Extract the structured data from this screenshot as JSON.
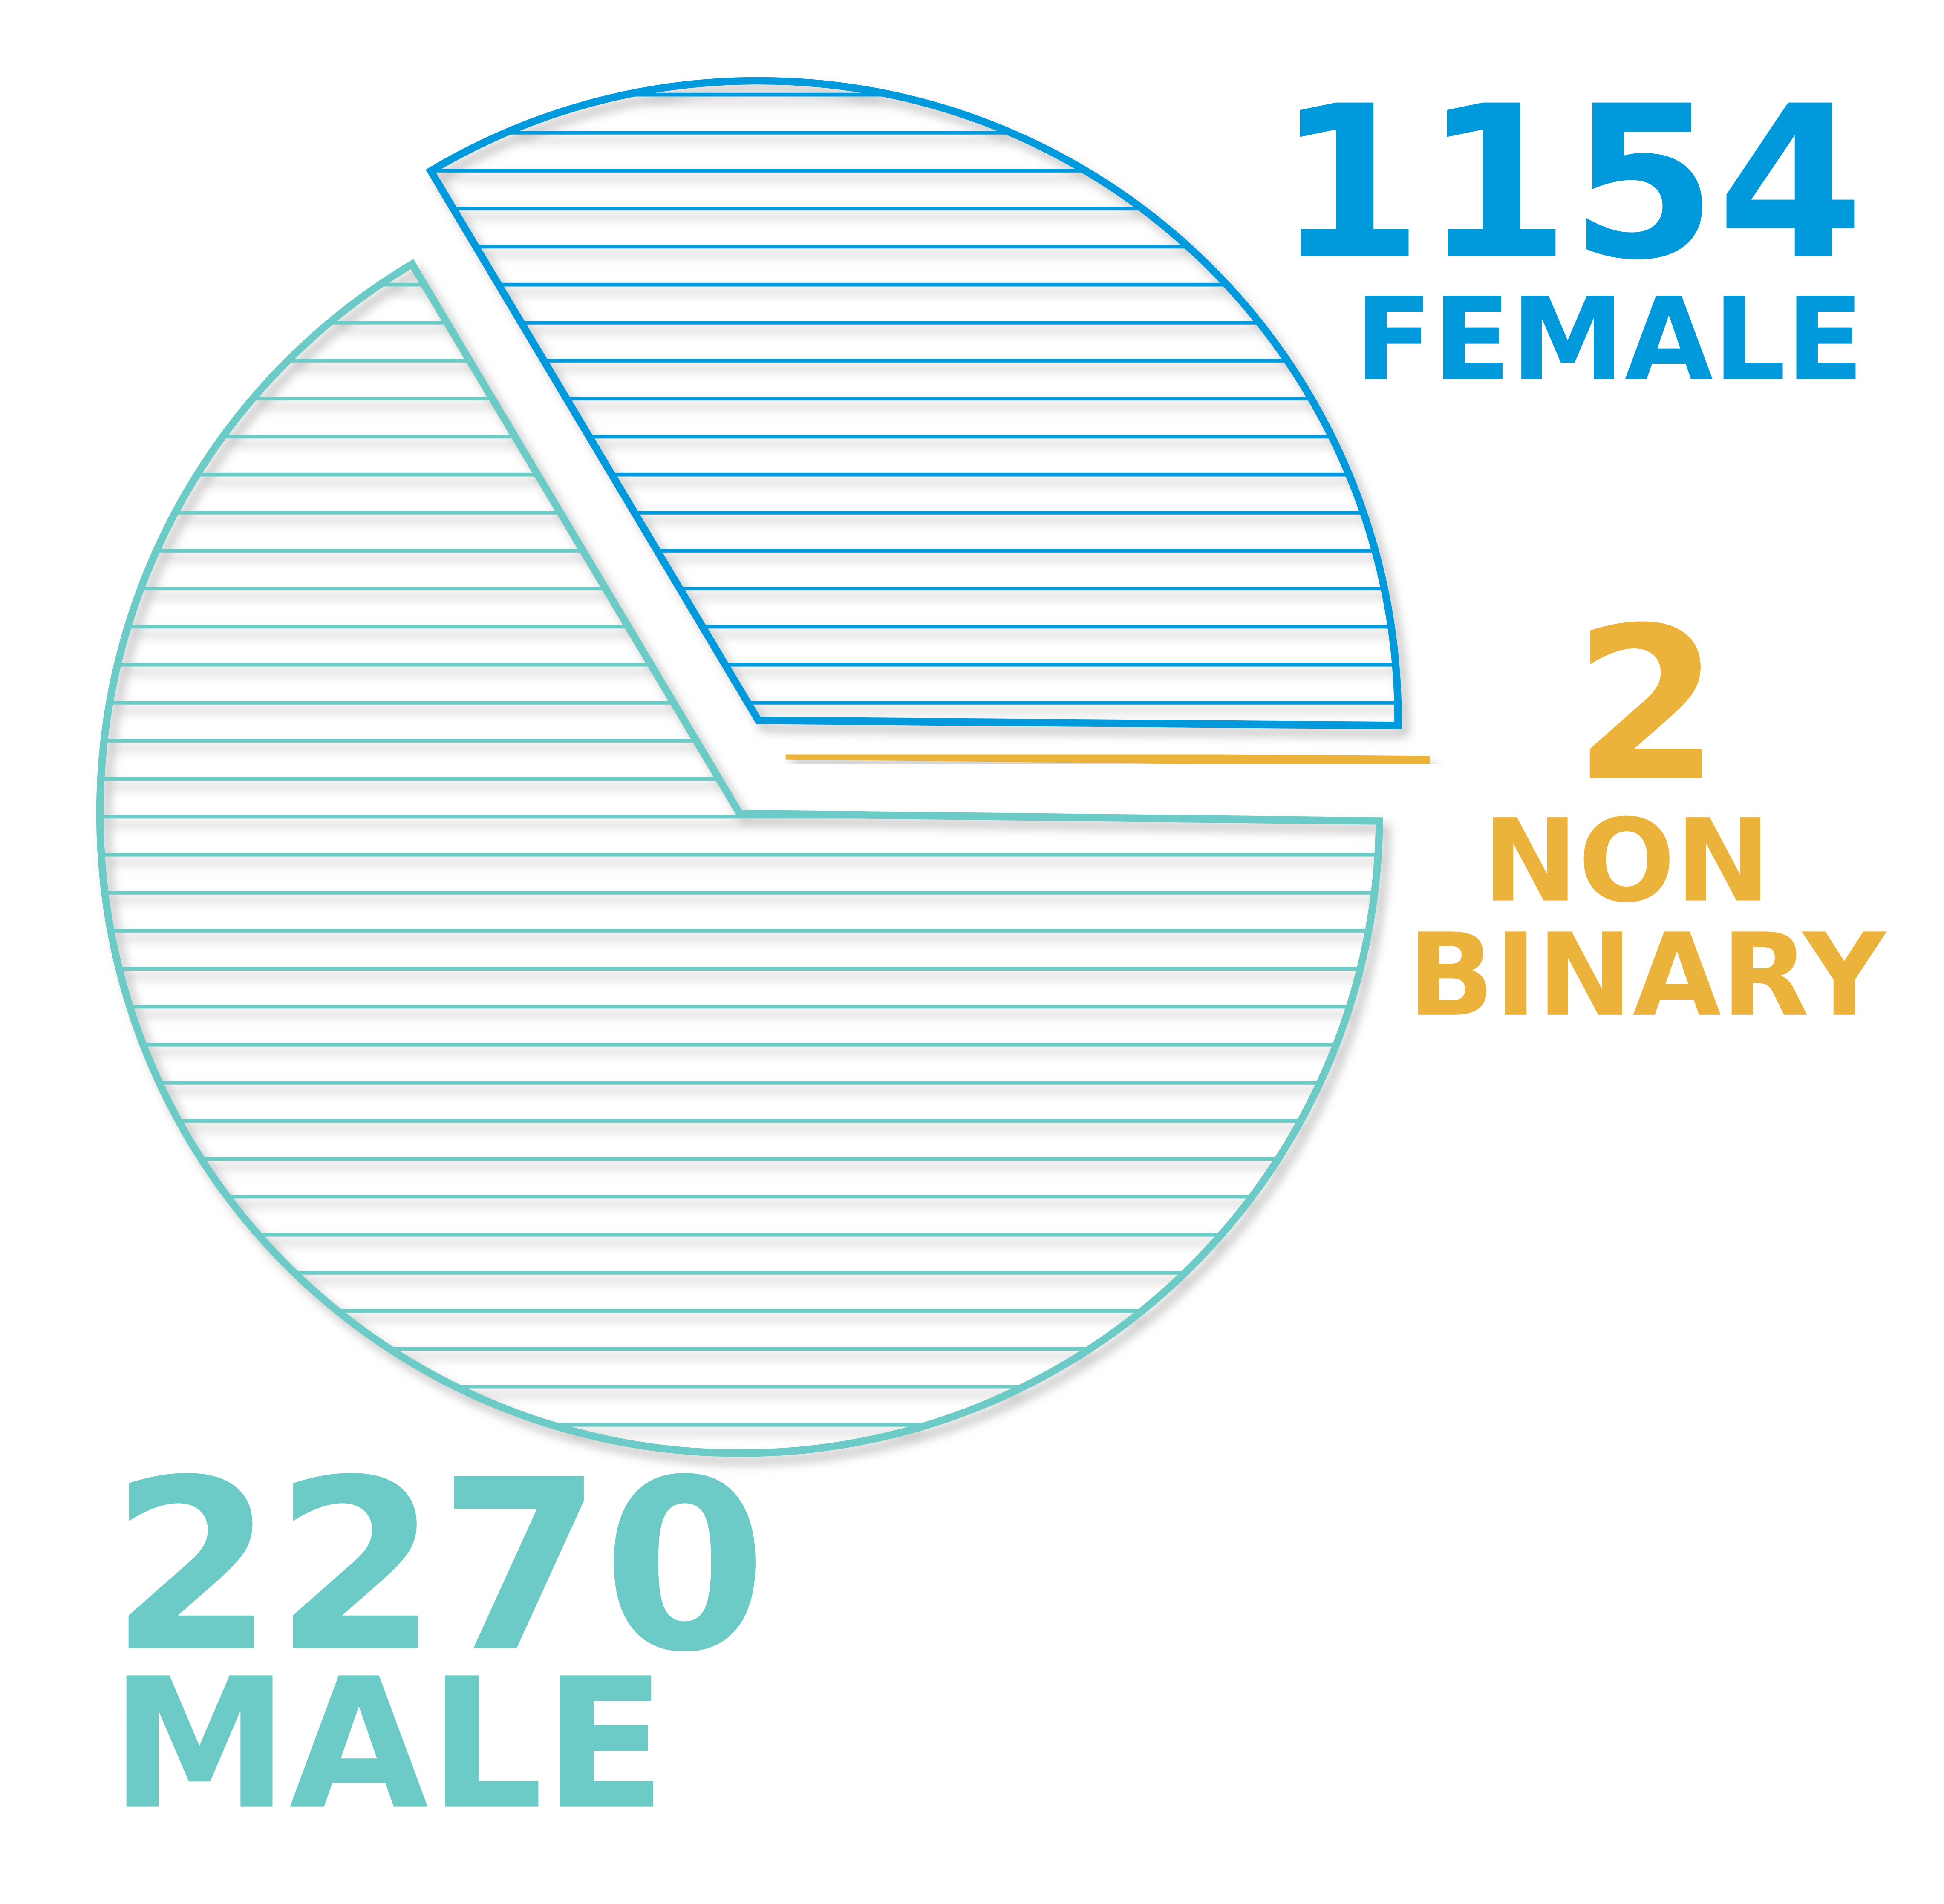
{
  "chart_data": {
    "type": "pie",
    "categories": [
      "FEMALE",
      "NON BINARY",
      "MALE"
    ],
    "values": [
      1154,
      2,
      2270
    ],
    "colors": [
      "#0099dc",
      "#ebb33b",
      "#6ccbc7"
    ]
  }
}
